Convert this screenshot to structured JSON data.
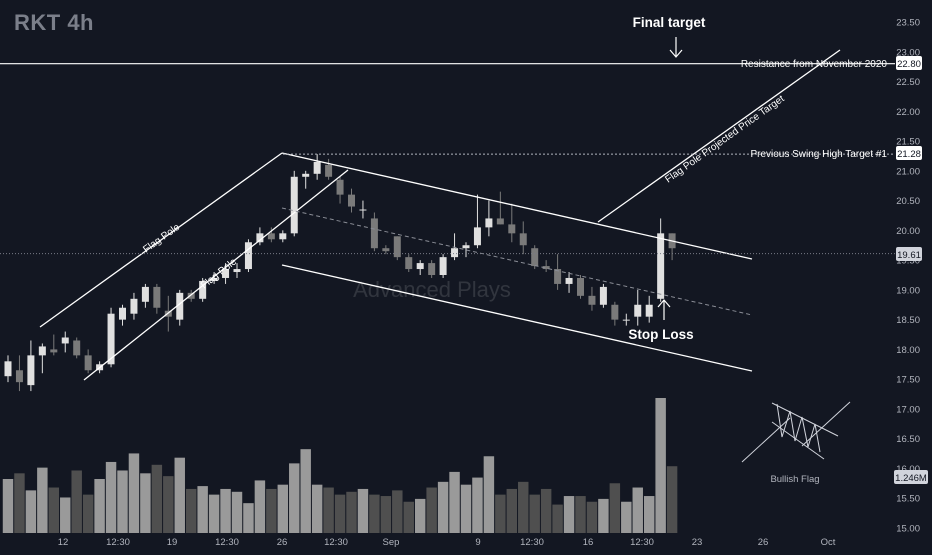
{
  "header": {
    "ticker": "RKT 4h"
  },
  "watermark": "Advanced Plays",
  "colors": {
    "background": "#131722",
    "candle_up": "#e0e0e0",
    "candle_down": "#7a7a7a",
    "volume_up": "#9a9a9a",
    "volume_down": "#4f4f4f",
    "line": "#ffffff",
    "axis_text": "#b2b5be"
  },
  "chart_data": {
    "type": "candlestick",
    "title": "RKT 4h",
    "y_axis": {
      "min": 15.0,
      "max": 23.5,
      "ticks": [
        "23.50",
        "23.00",
        "22.50",
        "22.00",
        "21.50",
        "21.00",
        "20.50",
        "20.00",
        "19.50",
        "19.00",
        "18.50",
        "18.00",
        "17.50",
        "17.00",
        "16.50",
        "16.00",
        "15.50",
        "15.00"
      ]
    },
    "x_axis": {
      "ticks": [
        "12",
        "12:30",
        "19",
        "12:30",
        "26",
        "12:30",
        "Sep",
        "9",
        "12:30",
        "16",
        "12:30",
        "23",
        "26",
        "Oct"
      ]
    },
    "candles": [
      {
        "o": 17.55,
        "h": 17.9,
        "l": 17.45,
        "c": 17.8
      },
      {
        "o": 17.65,
        "h": 17.9,
        "l": 17.3,
        "c": 17.45
      },
      {
        "o": 17.4,
        "h": 18.15,
        "l": 17.3,
        "c": 17.9
      },
      {
        "o": 17.9,
        "h": 18.1,
        "l": 17.6,
        "c": 18.05
      },
      {
        "o": 18.0,
        "h": 18.25,
        "l": 17.9,
        "c": 17.95
      },
      {
        "o": 18.1,
        "h": 18.3,
        "l": 17.95,
        "c": 18.2
      },
      {
        "o": 18.15,
        "h": 18.2,
        "l": 17.85,
        "c": 17.9
      },
      {
        "o": 17.9,
        "h": 18.0,
        "l": 17.6,
        "c": 17.65
      },
      {
        "o": 17.65,
        "h": 17.8,
        "l": 17.6,
        "c": 17.75
      },
      {
        "o": 17.75,
        "h": 18.7,
        "l": 17.7,
        "c": 18.6
      },
      {
        "o": 18.5,
        "h": 18.75,
        "l": 18.4,
        "c": 18.7
      },
      {
        "o": 18.6,
        "h": 18.95,
        "l": 18.5,
        "c": 18.85
      },
      {
        "o": 18.8,
        "h": 19.1,
        "l": 18.7,
        "c": 19.05
      },
      {
        "o": 19.05,
        "h": 19.1,
        "l": 18.6,
        "c": 18.7
      },
      {
        "o": 18.65,
        "h": 18.9,
        "l": 18.3,
        "c": 18.55
      },
      {
        "o": 18.5,
        "h": 19.0,
        "l": 18.4,
        "c": 18.95
      },
      {
        "o": 18.95,
        "h": 19.0,
        "l": 18.8,
        "c": 18.85
      },
      {
        "o": 18.85,
        "h": 19.2,
        "l": 18.8,
        "c": 19.15
      },
      {
        "o": 19.15,
        "h": 19.3,
        "l": 19.1,
        "c": 19.2
      },
      {
        "o": 19.2,
        "h": 19.45,
        "l": 19.1,
        "c": 19.35
      },
      {
        "o": 19.3,
        "h": 19.45,
        "l": 19.2,
        "c": 19.35
      },
      {
        "o": 19.35,
        "h": 19.85,
        "l": 19.3,
        "c": 19.8
      },
      {
        "o": 19.8,
        "h": 20.05,
        "l": 19.75,
        "c": 19.95
      },
      {
        "o": 19.95,
        "h": 20.05,
        "l": 19.8,
        "c": 19.85
      },
      {
        "o": 19.85,
        "h": 20.0,
        "l": 19.8,
        "c": 19.95
      },
      {
        "o": 19.95,
        "h": 21.0,
        "l": 19.9,
        "c": 20.9
      },
      {
        "o": 20.9,
        "h": 21.0,
        "l": 20.7,
        "c": 20.95
      },
      {
        "o": 20.95,
        "h": 21.28,
        "l": 20.85,
        "c": 21.15
      },
      {
        "o": 21.1,
        "h": 21.2,
        "l": 20.85,
        "c": 20.9
      },
      {
        "o": 20.85,
        "h": 20.9,
        "l": 20.45,
        "c": 20.6
      },
      {
        "o": 20.6,
        "h": 20.7,
        "l": 20.3,
        "c": 20.4
      },
      {
        "o": 20.35,
        "h": 20.5,
        "l": 20.2,
        "c": 20.35
      },
      {
        "o": 20.2,
        "h": 20.3,
        "l": 19.65,
        "c": 19.7
      },
      {
        "o": 19.7,
        "h": 19.75,
        "l": 19.6,
        "c": 19.65
      },
      {
        "o": 19.9,
        "h": 19.9,
        "l": 19.5,
        "c": 19.55
      },
      {
        "o": 19.55,
        "h": 19.6,
        "l": 19.3,
        "c": 19.35
      },
      {
        "o": 19.35,
        "h": 19.5,
        "l": 19.25,
        "c": 19.45
      },
      {
        "o": 19.45,
        "h": 19.5,
        "l": 19.2,
        "c": 19.25
      },
      {
        "o": 19.25,
        "h": 19.6,
        "l": 19.2,
        "c": 19.55
      },
      {
        "o": 19.55,
        "h": 19.95,
        "l": 19.5,
        "c": 19.7
      },
      {
        "o": 19.7,
        "h": 19.8,
        "l": 19.55,
        "c": 19.75
      },
      {
        "o": 19.75,
        "h": 20.6,
        "l": 19.7,
        "c": 20.05
      },
      {
        "o": 20.05,
        "h": 20.5,
        "l": 19.9,
        "c": 20.2
      },
      {
        "o": 20.2,
        "h": 20.65,
        "l": 20.1,
        "c": 20.1
      },
      {
        "o": 20.1,
        "h": 20.45,
        "l": 19.8,
        "c": 19.95
      },
      {
        "o": 19.95,
        "h": 20.15,
        "l": 19.6,
        "c": 19.75
      },
      {
        "o": 19.7,
        "h": 19.75,
        "l": 19.35,
        "c": 19.4
      },
      {
        "o": 19.4,
        "h": 19.5,
        "l": 19.3,
        "c": 19.35
      },
      {
        "o": 19.35,
        "h": 19.6,
        "l": 19.0,
        "c": 19.1
      },
      {
        "o": 19.1,
        "h": 19.3,
        "l": 18.95,
        "c": 19.2
      },
      {
        "o": 19.2,
        "h": 19.25,
        "l": 18.85,
        "c": 18.9
      },
      {
        "o": 18.9,
        "h": 19.05,
        "l": 18.65,
        "c": 18.75
      },
      {
        "o": 18.75,
        "h": 19.1,
        "l": 18.7,
        "c": 19.05
      },
      {
        "o": 18.75,
        "h": 18.8,
        "l": 18.4,
        "c": 18.5
      },
      {
        "o": 18.5,
        "h": 18.6,
        "l": 18.4,
        "c": 18.5
      },
      {
        "o": 18.55,
        "h": 19.0,
        "l": 18.4,
        "c": 18.75
      },
      {
        "o": 18.55,
        "h": 18.9,
        "l": 18.45,
        "c": 18.75
      },
      {
        "o": 18.85,
        "h": 20.2,
        "l": 18.8,
        "c": 19.95
      },
      {
        "o": 19.95,
        "h": 19.95,
        "l": 19.5,
        "c": 19.7
      }
    ],
    "volume": [
      38,
      42,
      30,
      46,
      32,
      25,
      44,
      27,
      38,
      50,
      44,
      56,
      42,
      48,
      40,
      53,
      31,
      33,
      27,
      31,
      29,
      21,
      37,
      31,
      34,
      49,
      59,
      34,
      32,
      27,
      29,
      31,
      27,
      26,
      30,
      22,
      24,
      32,
      36,
      43,
      34,
      39,
      54,
      27,
      31,
      36,
      27,
      31,
      20,
      26,
      26,
      22,
      24,
      35,
      22,
      32,
      26,
      95,
      47
    ],
    "volume_label": "1.246M",
    "annotations": {
      "final_target": "Final target",
      "resistance_label": "Resistance from November 2020",
      "resistance_price": "22.80",
      "resistance_value": 22.8,
      "swing_label": "Previous Swing High Target #1",
      "swing_price": "21.28",
      "swing_value": 21.28,
      "last_price": "19.61",
      "last_value": 19.61,
      "projected_label": "Flag Pole Projected Price Target",
      "flag_pole_label": "Flag Pole",
      "stop_loss": "Stop Loss",
      "bullish_flag": "Bullish Flag"
    }
  }
}
